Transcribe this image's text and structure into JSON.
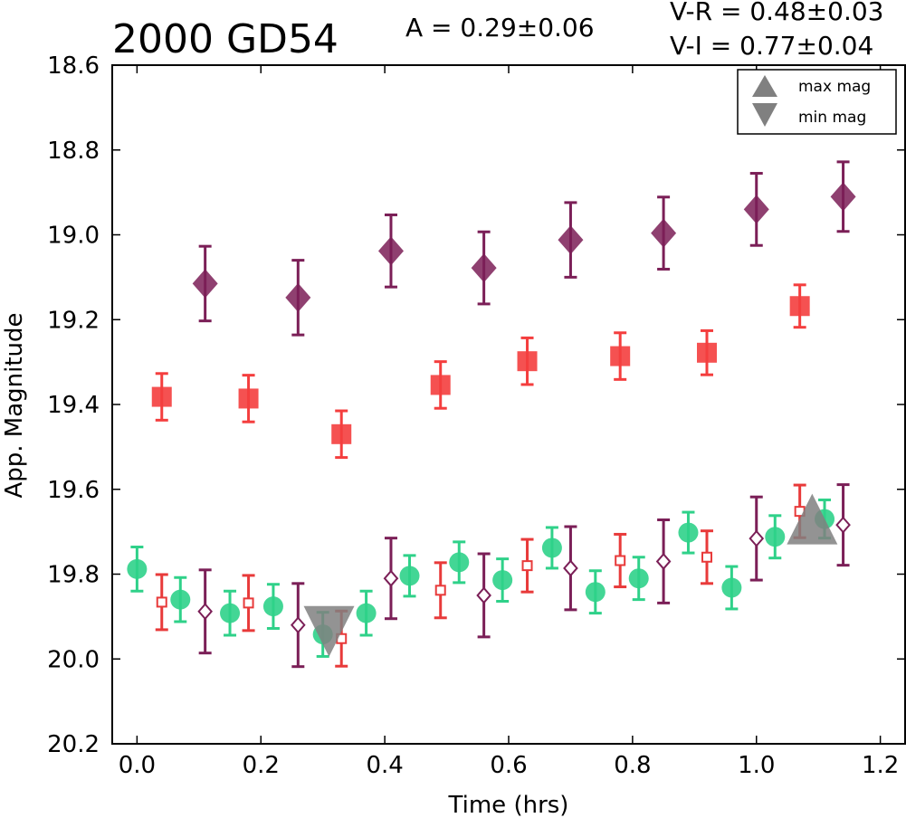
{
  "chart_data": {
    "type": "scatter",
    "title": "2000 GD54",
    "annotations": {
      "amplitude": "A  = 0.29±0.06",
      "v_r": "V-R = 0.48±0.03",
      "v_i": "V-I  = 0.77±0.04"
    },
    "xlabel": "Time (hrs)",
    "ylabel": "App. Magnitude",
    "xlim": [
      -0.04,
      1.24
    ],
    "ylim": [
      20.2,
      18.6
    ],
    "y_inverted": true,
    "x_ticks": [
      0.0,
      0.2,
      0.4,
      0.6,
      0.8,
      1.0,
      1.2
    ],
    "x_tick_labels": [
      "0.0",
      "0.2",
      "0.4",
      "0.6",
      "0.8",
      "1.0",
      "1.2"
    ],
    "y_ticks": [
      18.6,
      18.8,
      19.0,
      19.2,
      19.4,
      19.6,
      19.8,
      20.0,
      20.2
    ],
    "y_tick_labels": [
      "18.6",
      "18.8",
      "19.0",
      "19.2",
      "19.4",
      "19.6",
      "19.8",
      "20.0",
      "20.2"
    ],
    "grid": false,
    "legend_position": "top-right",
    "legend": [
      {
        "label": "max mag",
        "marker": "triangle-up",
        "color": "#808080"
      },
      {
        "label": "min mag",
        "marker": "triangle-down",
        "color": "#808080"
      }
    ],
    "series": [
      {
        "marker": "diamond-filled",
        "color": "#7b1f57",
        "x": [
          0.11,
          0.26,
          0.41,
          0.56,
          0.7,
          0.85,
          1.0,
          1.14
        ],
        "y": [
          19.115,
          19.148,
          19.038,
          19.078,
          19.012,
          18.996,
          18.94,
          18.91
        ],
        "err": [
          0.088,
          0.088,
          0.085,
          0.085,
          0.088,
          0.085,
          0.085,
          0.082
        ]
      },
      {
        "marker": "square-filled",
        "color": "#f43e3e",
        "x": [
          0.04,
          0.18,
          0.33,
          0.49,
          0.63,
          0.78,
          0.92,
          1.07
        ],
        "y": [
          19.382,
          19.386,
          19.47,
          19.354,
          19.298,
          19.286,
          19.278,
          19.168
        ],
        "err": [
          0.055,
          0.055,
          0.055,
          0.055,
          0.055,
          0.055,
          0.052,
          0.05
        ]
      },
      {
        "marker": "circle-filled",
        "color": "#2fd189",
        "x": [
          0.0,
          0.07,
          0.15,
          0.22,
          0.3,
          0.37,
          0.44,
          0.52,
          0.59,
          0.67,
          0.74,
          0.81,
          0.89,
          0.96,
          1.03,
          1.11
        ],
        "y": [
          19.788,
          19.86,
          19.892,
          19.876,
          19.942,
          19.892,
          19.804,
          19.772,
          19.814,
          19.738,
          19.842,
          19.81,
          19.702,
          19.832,
          19.712,
          19.67
        ],
        "err": [
          0.052,
          0.052,
          0.052,
          0.052,
          0.052,
          0.052,
          0.048,
          0.048,
          0.05,
          0.048,
          0.05,
          0.05,
          0.048,
          0.05,
          0.05,
          0.045
        ]
      },
      {
        "marker": "square-open",
        "color": "#e83a3a",
        "x": [
          0.04,
          0.18,
          0.33,
          0.49,
          0.63,
          0.78,
          0.92,
          1.07
        ],
        "y": [
          19.866,
          19.868,
          19.952,
          19.838,
          19.78,
          19.768,
          19.76,
          19.652
        ],
        "err": [
          0.065,
          0.065,
          0.065,
          0.065,
          0.062,
          0.062,
          0.062,
          0.062
        ]
      },
      {
        "marker": "diamond-open",
        "color": "#7b1f57",
        "x": [
          0.11,
          0.26,
          0.41,
          0.56,
          0.7,
          0.85,
          1.0,
          1.14
        ],
        "y": [
          19.888,
          19.92,
          19.81,
          19.85,
          19.786,
          19.77,
          19.716,
          19.684
        ],
        "err": [
          0.098,
          0.098,
          0.095,
          0.098,
          0.098,
          0.098,
          0.098,
          0.095
        ]
      },
      {
        "marker": "triangle-down",
        "color": "#808080",
        "x": [
          0.31
        ],
        "y": [
          19.935
        ],
        "err": [
          0
        ]
      },
      {
        "marker": "triangle-up",
        "color": "#808080",
        "x": [
          1.09
        ],
        "y": [
          19.67
        ],
        "err": [
          0
        ]
      }
    ]
  }
}
